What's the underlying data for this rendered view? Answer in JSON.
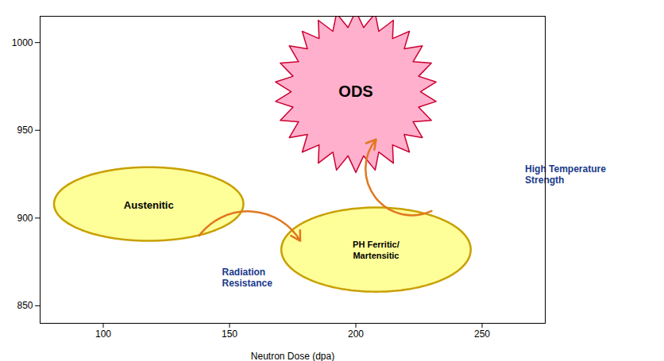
{
  "chart_data": {
    "type": "diagram",
    "xlabel": "Neutron Dose (dpa)",
    "xlim": [
      75,
      275
    ],
    "ylim": [
      840,
      1015
    ],
    "xticks": [
      100,
      150,
      200,
      250
    ],
    "yticks": [
      850,
      900,
      950,
      1000
    ],
    "ellipses": [
      {
        "name": "Austenitic",
        "x": 118,
        "y": 908,
        "width": 75,
        "height": 42,
        "color": "#FFFF99",
        "edge_color": "#C8A000"
      },
      {
        "name": "PH Ferritic/\nMartensitic",
        "x": 208,
        "y": 882,
        "width": 75,
        "height": 48,
        "color": "#FFFF99",
        "edge_color": "#C8A000"
      }
    ],
    "star": {
      "name": "ODS",
      "x": 200,
      "y": 972,
      "radius": 32,
      "inner_ratio": 0.8,
      "spikes": 26,
      "color": "#FFB0CC",
      "edge_color": "#CC0033"
    },
    "arrows": [
      {
        "from": [
          138,
          890
        ],
        "to": [
          178,
          887
        ]
      },
      {
        "from": [
          230,
          904
        ],
        "to": [
          208,
          944.8
        ]
      }
    ],
    "arrow_color": "#E07820",
    "annotations": [
      {
        "text": "Radiation\nResistance",
        "x": 147,
        "y": 872,
        "color": "#1A3A8A"
      },
      {
        "text": "High Temperature\nStrength",
        "x": 267,
        "y": 925,
        "color": "#1A3A8A"
      }
    ]
  }
}
